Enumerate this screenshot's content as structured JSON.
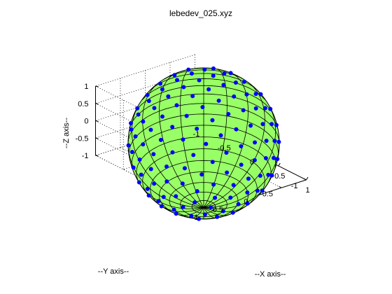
{
  "chart_data": {
    "type": "scatter",
    "title": "lebedev_025.xyz",
    "xlabel": "--X axis--",
    "ylabel": "--Y axis--",
    "zlabel": "--Z axis--",
    "xlim": [
      -1,
      1
    ],
    "ylim": [
      -1,
      1
    ],
    "zlim": [
      -1,
      1
    ],
    "x_ticks": [
      "-1",
      "-0.5",
      "0",
      "0.5",
      "1"
    ],
    "y_ticks": [
      "-1",
      "-0.5",
      "0",
      "0.5",
      "1"
    ],
    "z_ticks": [
      "-1",
      "-0.5",
      "0",
      "0.5",
      "1"
    ],
    "grid": true,
    "sphere_color": "#99ff66",
    "point_color": "#0000ff",
    "mesh_color": "#000000",
    "unit_sphere_radius": 1,
    "lebedev_order": 25,
    "points": "Lebedev quadrature points on the unit sphere (order 25)"
  }
}
